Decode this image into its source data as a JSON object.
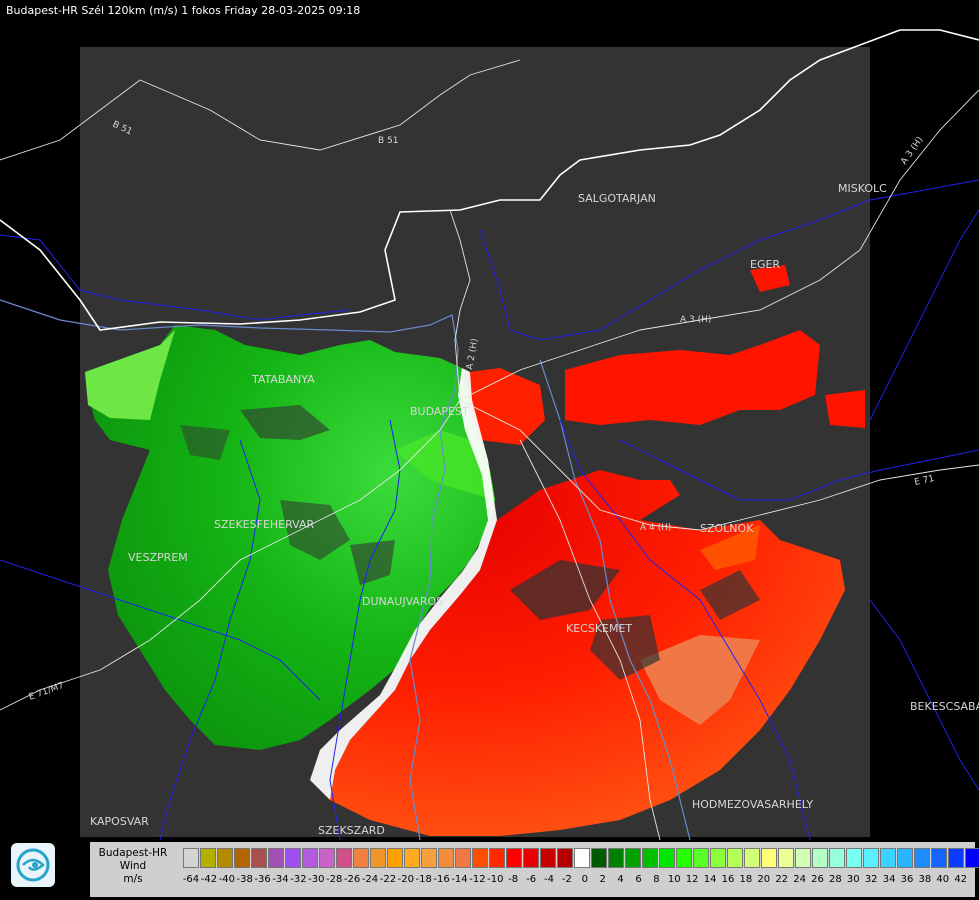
{
  "header": {
    "title": "Budapest-HR Szél 120km (m/s) 1 fokos Friday 28-03-2025 09:18"
  },
  "map": {
    "cities": [
      "SALGOTARJAN",
      "MISKOLC",
      "EGER",
      "TATABANYA",
      "BUDAPEST",
      "SZEKESFEHERVAR",
      "VESZPREM",
      "DUNAUJVAROS",
      "KECSKEMET",
      "SZOLNOK",
      "KAPOSVAR",
      "SZEKSZARD",
      "HODMEZOVASARHELY",
      "BEKESCSABA"
    ],
    "roads": [
      "B 51",
      "B 51",
      "A 3 (H)",
      "A 3 (H)",
      "A 2 (H)",
      "A 4 (H)",
      "E 71",
      "E 71/M7"
    ],
    "colors": {
      "background": "#000000",
      "coverage": "#333333",
      "borders": "#ffffff",
      "counties": "#1a1aff",
      "rivers": "#6a8acf"
    }
  },
  "legend": {
    "logo": "hungarian-meteorological-service-logo",
    "label_line1": "Budapest-HR",
    "label_line2": "Wind",
    "label_line3": "m/s",
    "colors": [
      "#d4d4d4",
      "#b4b000",
      "#b48a00",
      "#b46400",
      "#a85050",
      "#a050b4",
      "#a050f0",
      "#b45ae0",
      "#c864c8",
      "#d0508c",
      "#f08040",
      "#f09628",
      "#ffa000",
      "#ffaa20",
      "#f5a03c",
      "#f08c3c",
      "#f07846",
      "#ff5000",
      "#ff2800",
      "#ff0000",
      "#e60000",
      "#c80000",
      "#b40000",
      "#ffffff",
      "#005a00",
      "#008200",
      "#00a000",
      "#00be00",
      "#00e600",
      "#28ff00",
      "#5aff28",
      "#8cff3c",
      "#b4ff5a",
      "#d2ff78",
      "#ffff78",
      "#ebff96",
      "#d2ffb4",
      "#b4ffc8",
      "#96ffdc",
      "#78fff0",
      "#5af0ff",
      "#3cd2ff",
      "#28b4ff",
      "#1e8cff",
      "#1464ff",
      "#0a3cff",
      "#0000ff"
    ],
    "ticks": [
      "-64",
      "-42",
      "-40",
      "-38",
      "-36",
      "-34",
      "-32",
      "-30",
      "-28",
      "-26",
      "-24",
      "-22",
      "-20",
      "-18",
      "-16",
      "-14",
      "-12",
      "-10",
      "-8",
      "-6",
      "-4",
      "-2",
      "0",
      "2",
      "4",
      "6",
      "8",
      "10",
      "12",
      "14",
      "16",
      "18",
      "20",
      "22",
      "24",
      "26",
      "28",
      "30",
      "32",
      "34",
      "36",
      "38",
      "40",
      "42"
    ]
  }
}
